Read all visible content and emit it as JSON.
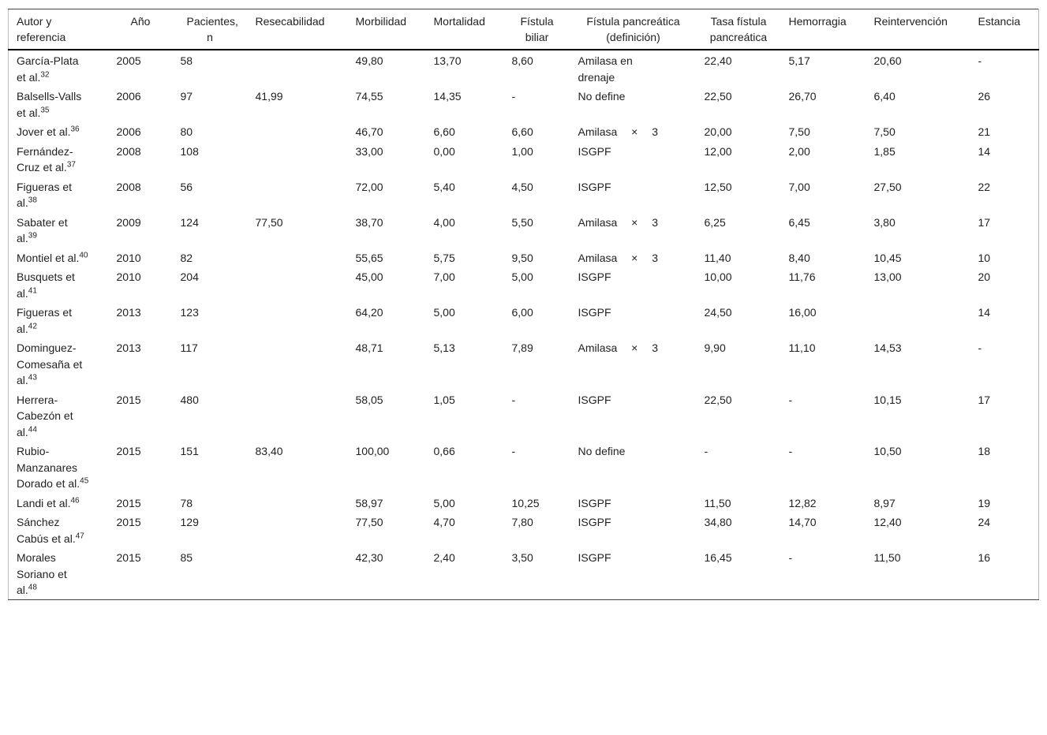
{
  "table": {
    "headers": [
      "Autor y referencia",
      "Año",
      "Pacientes, n",
      "Resecabilidad",
      "Morbilidad",
      "Mortalidad",
      "Fístula biliar",
      "Fístula pancreática (definición)",
      "Tasa fístula pancreática",
      "Hemorragia",
      "Reintervención",
      "Estancia"
    ],
    "rows": [
      {
        "author": "García-Plata et al.",
        "ref": "32",
        "year": "2005",
        "n": "58",
        "resec": "",
        "morb": "49,80",
        "mort": "13,70",
        "fb": "8,60",
        "def": "Amilasa en drenaje",
        "tasa": "22,40",
        "hem": "5,17",
        "reint": "20,60",
        "est": "-"
      },
      {
        "author": "Balsells-Valls et al.",
        "ref": "35",
        "year": "2006",
        "n": "97",
        "resec": "41,99",
        "morb": "74,55",
        "mort": "14,35",
        "fb": "-",
        "def": "No define",
        "tasa": "22,50",
        "hem": "26,70",
        "reint": "6,40",
        "est": "26"
      },
      {
        "author": "Jover et al.",
        "ref": "36",
        "year": "2006",
        "n": "80",
        "resec": "",
        "morb": "46,70",
        "mort": "6,60",
        "fb": "6,60",
        "def": "Amilasa × 3",
        "tasa": "20,00",
        "hem": "7,50",
        "reint": "7,50",
        "est": "21"
      },
      {
        "author": "Fernández-Cruz et al.",
        "ref": "37",
        "year": "2008",
        "n": "108",
        "resec": "",
        "morb": "33,00",
        "mort": "0,00",
        "fb": "1,00",
        "def": "ISGPF",
        "tasa": "12,00",
        "hem": "2,00",
        "reint": "1,85",
        "est": "14"
      },
      {
        "author": "Figueras et al.",
        "ref": "38",
        "year": "2008",
        "n": "56",
        "resec": "",
        "morb": "72,00",
        "mort": "5,40",
        "fb": "4,50",
        "def": "ISGPF",
        "tasa": "12,50",
        "hem": "7,00",
        "reint": "27,50",
        "est": "22"
      },
      {
        "author": "Sabater et al.",
        "ref": "39",
        "year": "2009",
        "n": "124",
        "resec": "77,50",
        "morb": "38,70",
        "mort": "4,00",
        "fb": "5,50",
        "def": "Amilasa × 3",
        "tasa": "6,25",
        "hem": "6,45",
        "reint": "3,80",
        "est": "17"
      },
      {
        "author": "Montiel et al.",
        "ref": "40",
        "year": "2010",
        "n": "82",
        "resec": "",
        "morb": "55,65",
        "mort": "5,75",
        "fb": "9,50",
        "def": "Amilasa × 3",
        "tasa": "11,40",
        "hem": "8,40",
        "reint": "10,45",
        "est": "10"
      },
      {
        "author": "Busquets et al.",
        "ref": "41",
        "year": "2010",
        "n": "204",
        "resec": "",
        "morb": "45,00",
        "mort": "7,00",
        "fb": "5,00",
        "def": "ISGPF",
        "tasa": "10,00",
        "hem": "11,76",
        "reint": "13,00",
        "est": "20"
      },
      {
        "author": "Figueras et al.",
        "ref": "42",
        "year": "2013",
        "n": "123",
        "resec": "",
        "morb": "64,20",
        "mort": "5,00",
        "fb": "6,00",
        "def": "ISGPF",
        "tasa": "24,50",
        "hem": "16,00",
        "reint": "",
        "est": "14"
      },
      {
        "author": "Dominguez-Comesaña et al.",
        "ref": "43",
        "year": "2013",
        "n": "117",
        "resec": "",
        "morb": "48,71",
        "mort": "5,13",
        "fb": "7,89",
        "def": "Amilasa × 3",
        "tasa": "9,90",
        "hem": "11,10",
        "reint": "14,53",
        "est": "-"
      },
      {
        "author": "Herrera-Cabezón et al.",
        "ref": "44",
        "year": "2015",
        "n": "480",
        "resec": "",
        "morb": "58,05",
        "mort": "1,05",
        "fb": "-",
        "def": "ISGPF",
        "tasa": "22,50",
        "hem": "-",
        "reint": "10,15",
        "est": "17"
      },
      {
        "author": "Rubio-Manzanares Dorado et al.",
        "ref": "45",
        "year": "2015",
        "n": "151",
        "resec": "83,40",
        "morb": "100,00",
        "mort": "0,66",
        "fb": "-",
        "def": "No define",
        "tasa": "-",
        "hem": "-",
        "reint": "10,50",
        "est": "18"
      },
      {
        "author": "Landi et al.",
        "ref": "46",
        "year": "2015",
        "n": "78",
        "resec": "",
        "morb": "58,97",
        "mort": "5,00",
        "fb": "10,25",
        "def": "ISGPF",
        "tasa": "11,50",
        "hem": "12,82",
        "reint": "8,97",
        "est": "19"
      },
      {
        "author": "Sánchez Cabús et al.",
        "ref": "47",
        "year": "2015",
        "n": "129",
        "resec": "",
        "morb": "77,50",
        "mort": "4,70",
        "fb": "7,80",
        "def": "ISGPF",
        "tasa": "34,80",
        "hem": "14,70",
        "reint": "12,40",
        "est": "24"
      },
      {
        "author": "Morales Soriano et al.",
        "ref": "48",
        "year": "2015",
        "n": "85",
        "resec": "",
        "morb": "42,30",
        "mort": "2,40",
        "fb": "3,50",
        "def": "ISGPF",
        "tasa": "16,45",
        "hem": "-",
        "reint": "11,50",
        "est": "16"
      }
    ]
  }
}
